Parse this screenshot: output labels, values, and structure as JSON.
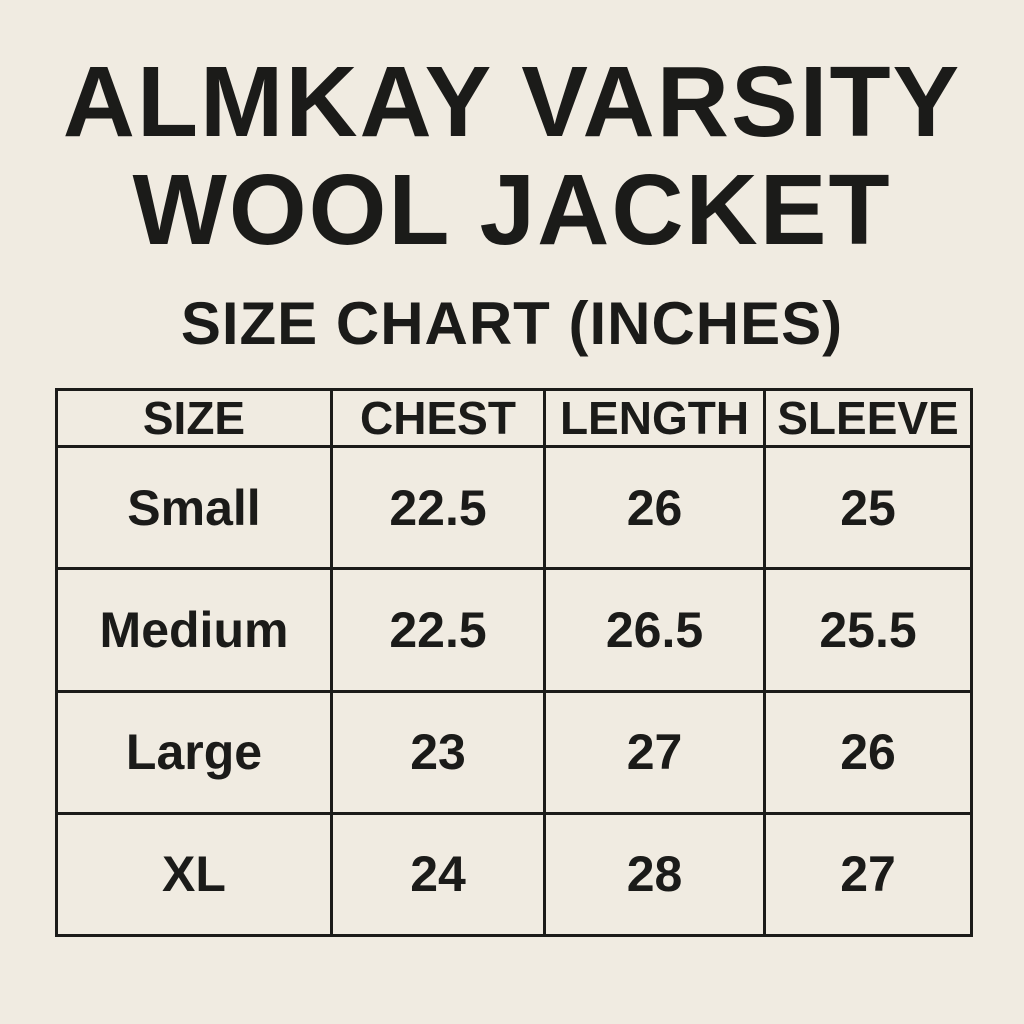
{
  "title": {
    "line1": "ALMKAY VARSITY",
    "line2": "WOOL JACKET"
  },
  "subtitle": "SIZE CHART (INCHES)",
  "table": {
    "headers": [
      "SIZE",
      "CHEST",
      "LENGTH",
      "SLEEVE"
    ],
    "rows": [
      [
        "Small",
        "22.5",
        "26",
        "25"
      ],
      [
        "Medium",
        "22.5",
        "26.5",
        "25.5"
      ],
      [
        "Large",
        "23",
        "27",
        "26"
      ],
      [
        "XL",
        "24",
        "28",
        "27"
      ]
    ]
  },
  "colors": {
    "background": "#f0ebe1",
    "ink": "#1b1b19"
  }
}
